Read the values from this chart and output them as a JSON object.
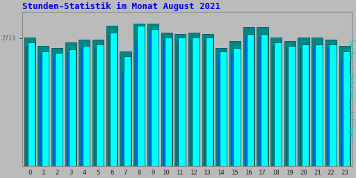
{
  "title": "Stunden-Statistik im Monat August 2021",
  "title_color": "#0000EE",
  "title_fontsize": 9,
  "ylabel": "Seiten / Dateien / Anfragen",
  "ylabel_color": "#00CCCC",
  "ylabel_fontsize": 6.5,
  "ytick_label": "2713",
  "ytick_color": "#555555",
  "background_color": "#BBBBBB",
  "plot_bg_color": "#BBBBBB",
  "bar_edge_color": "#005555",
  "bar_cyan_color": "#00FFFF",
  "bar_blue_color": "#0066FF",
  "bar_teal_color": "#008888",
  "categories": [
    0,
    1,
    2,
    3,
    4,
    5,
    6,
    7,
    8,
    9,
    10,
    11,
    12,
    13,
    14,
    15,
    16,
    17,
    18,
    19,
    20,
    21,
    22,
    23
  ],
  "values_cyan": [
    72,
    67,
    66,
    68,
    70,
    71,
    78,
    64,
    82,
    80,
    75,
    75,
    75,
    75,
    67,
    69,
    77,
    77,
    72,
    70,
    71,
    71,
    71,
    67
  ],
  "values_blue": [
    70,
    65,
    64,
    66,
    68,
    69,
    76,
    55,
    73,
    77,
    73,
    72,
    73,
    73,
    65,
    66,
    75,
    75,
    70,
    68,
    69,
    69,
    69,
    63
  ],
  "values_teal": [
    75,
    70,
    69,
    72,
    74,
    74,
    82,
    67,
    83,
    83,
    78,
    77,
    78,
    77,
    69,
    73,
    81,
    81,
    75,
    73,
    75,
    75,
    74,
    70
  ],
  "ylim_max": 90,
  "ylim_min": 0,
  "font_family": "monospace"
}
